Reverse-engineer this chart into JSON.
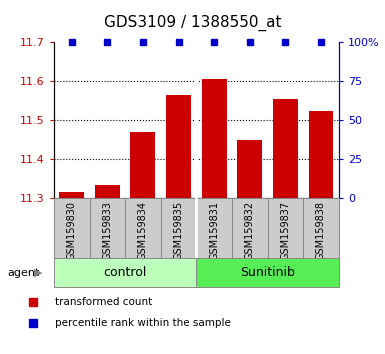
{
  "title": "GDS3109 / 1388550_at",
  "bar_labels": [
    "GSM159830",
    "GSM159833",
    "GSM159834",
    "GSM159835",
    "GSM159831",
    "GSM159832",
    "GSM159837",
    "GSM159838"
  ],
  "bar_values": [
    11.315,
    11.335,
    11.47,
    11.565,
    11.605,
    11.45,
    11.555,
    11.525
  ],
  "bar_color": "#cc0000",
  "bar_bottom": 11.3,
  "percentile_color": "#0000cc",
  "ylim_left": [
    11.3,
    11.7
  ],
  "ylim_right": [
    0,
    100
  ],
  "yticks_left": [
    11.3,
    11.4,
    11.5,
    11.6,
    11.7
  ],
  "yticks_right": [
    0,
    25,
    50,
    75,
    100
  ],
  "ytick_labels_right": [
    "0",
    "25",
    "50",
    "75",
    "100%"
  ],
  "groups": [
    {
      "label": "control",
      "indices": [
        0,
        1,
        2,
        3
      ],
      "color": "#bbffbb"
    },
    {
      "label": "Sunitinib",
      "indices": [
        4,
        5,
        6,
        7
      ],
      "color": "#55ee55"
    }
  ],
  "agent_label": "agent",
  "legend_items": [
    {
      "label": "transformed count",
      "color": "#cc0000"
    },
    {
      "label": "percentile rank within the sample",
      "color": "#0000cc"
    }
  ],
  "bar_width": 0.7,
  "left_tick_color": "#cc0000",
  "right_tick_color": "#0000cc",
  "label_bg_color": "#cccccc",
  "label_border_color": "#888888"
}
